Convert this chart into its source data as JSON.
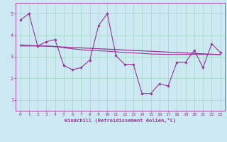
{
  "xlabel": "Windchill (Refroidissement éolien,°C)",
  "background_color": "#cce8f0",
  "grid_color": "#a8d8cc",
  "line_color": "#993399",
  "xlim": [
    -0.5,
    23.5
  ],
  "ylim": [
    0.5,
    5.5
  ],
  "yticks": [
    1,
    2,
    3,
    4,
    5
  ],
  "xticks": [
    0,
    1,
    2,
    3,
    4,
    5,
    6,
    7,
    8,
    9,
    10,
    11,
    12,
    13,
    14,
    15,
    16,
    17,
    18,
    19,
    20,
    21,
    22,
    23
  ],
  "main_x": [
    0,
    1,
    2,
    3,
    4,
    5,
    6,
    7,
    8,
    9,
    10,
    11,
    12,
    13,
    14,
    15,
    16,
    17,
    18,
    19,
    20,
    21,
    22,
    23
  ],
  "main_y": [
    4.7,
    5.0,
    3.5,
    3.7,
    3.8,
    2.6,
    2.4,
    2.5,
    2.85,
    4.45,
    5.0,
    3.05,
    2.65,
    2.65,
    1.3,
    1.3,
    1.75,
    1.65,
    2.75,
    2.75,
    3.3,
    2.5,
    3.6,
    3.2
  ],
  "trend_x": [
    0,
    23
  ],
  "trend_y": [
    3.55,
    3.1
  ],
  "avg_x": [
    0,
    1,
    2,
    3,
    4,
    5,
    6,
    7,
    8,
    9,
    10,
    11,
    12,
    13,
    14,
    15,
    16,
    17,
    18,
    19,
    20,
    21,
    22,
    23
  ],
  "avg_y": [
    3.5,
    3.5,
    3.5,
    3.5,
    3.48,
    3.42,
    3.37,
    3.33,
    3.3,
    3.28,
    3.26,
    3.23,
    3.2,
    3.18,
    3.16,
    3.13,
    3.12,
    3.11,
    3.11,
    3.11,
    3.11,
    3.11,
    3.11,
    3.11
  ],
  "tick_fontsize": 4.5,
  "xlabel_fontsize": 5.0
}
